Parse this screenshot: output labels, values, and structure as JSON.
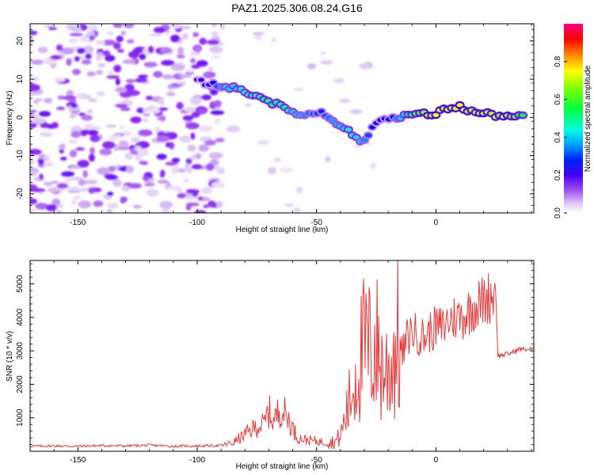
{
  "title": "PAZ1.2025.306.08.24.G16",
  "chart_data": [
    {
      "type": "heatmap",
      "xlabel": "Height of straight line (km)",
      "ylabel": "Frequency (Hz)",
      "xlim": [
        -170,
        41
      ],
      "ylim": [
        -25,
        24.5
      ],
      "xticks": [
        -150,
        -100,
        -50,
        0
      ],
      "yticks": [
        -20,
        -10,
        0,
        10,
        20
      ],
      "xtick_labels": [
        "-150",
        "-100",
        "-50",
        "0"
      ],
      "ytick_labels": [
        "-20",
        "-10",
        "0",
        "10",
        "20"
      ],
      "colorbar": {
        "label": "Normalized spectral amplitude",
        "range": [
          0,
          1
        ],
        "ticks": [
          0.0,
          0.2,
          0.4,
          0.6,
          0.8
        ],
        "tick_labels": [
          "0.0",
          "0.2",
          "0.4",
          "0.6",
          "0.8"
        ],
        "colors": [
          "#ffffff",
          "#d9c2f2",
          "#8f2cf0",
          "#4b00ff",
          "#0000ff",
          "#00b4ff",
          "#00ffd0",
          "#00ff40",
          "#7dff00",
          "#ffff00",
          "#ff9000",
          "#ff0000",
          "#ff0080"
        ]
      },
      "ridge": [
        {
          "x": -100,
          "y": 9.5,
          "a": 0.25
        },
        {
          "x": -95,
          "y": 8.8,
          "a": 0.3
        },
        {
          "x": -88,
          "y": 8.2,
          "a": 0.45
        },
        {
          "x": -80,
          "y": 6.8,
          "a": 0.5
        },
        {
          "x": -72,
          "y": 5.0,
          "a": 0.55
        },
        {
          "x": -65,
          "y": 2.8,
          "a": 0.55
        },
        {
          "x": -60,
          "y": 1.5,
          "a": 0.45
        },
        {
          "x": -55,
          "y": 0.5,
          "a": 0.4
        },
        {
          "x": -48,
          "y": 1.5,
          "a": 0.35
        },
        {
          "x": -40,
          "y": -2.0,
          "a": 0.45
        },
        {
          "x": -35,
          "y": -4.5,
          "a": 0.5
        },
        {
          "x": -30,
          "y": -6.5,
          "a": 0.4
        },
        {
          "x": -25,
          "y": -1.0,
          "a": 0.3
        },
        {
          "x": -18,
          "y": 0.0,
          "a": 0.35
        },
        {
          "x": -10,
          "y": 0.8,
          "a": 0.6
        },
        {
          "x": 0,
          "y": 0.8,
          "a": 0.75
        },
        {
          "x": 5,
          "y": 2.5,
          "a": 0.7
        },
        {
          "x": 10,
          "y": 2.8,
          "a": 0.75
        },
        {
          "x": 15,
          "y": 1.5,
          "a": 0.7
        },
        {
          "x": 20,
          "y": 1.0,
          "a": 0.7
        },
        {
          "x": 30,
          "y": 0.2,
          "a": 0.7
        },
        {
          "x": 38,
          "y": 0.0,
          "a": 0.55
        }
      ]
    },
    {
      "type": "line",
      "xlabel": "Height of straight line (km)",
      "ylabel": "SNR (10 * v/v)",
      "xlim": [
        -170,
        41
      ],
      "ylim": [
        0,
        5700
      ],
      "xticks": [
        -150,
        -100,
        -50,
        0
      ],
      "yticks": [
        1000,
        2000,
        3000,
        4000,
        5000
      ],
      "xtick_labels": [
        "-150",
        "-100",
        "-50",
        "0"
      ],
      "ytick_labels": [
        "1000",
        "2000",
        "3000",
        "4000",
        "5000"
      ],
      "color": "#e8393a",
      "series": [
        {
          "name": "SNR",
          "x": [
            -170,
            -160,
            -150,
            -140,
            -130,
            -120,
            -110,
            -100,
            -90,
            -85,
            -80,
            -75,
            -72,
            -70,
            -68,
            -65,
            -62,
            -60,
            -58,
            -55,
            -50,
            -45,
            -42,
            -40,
            -38,
            -35,
            -33,
            -30,
            -28,
            -25,
            -23,
            -20,
            -18,
            -16,
            -14,
            -12,
            -10,
            -8,
            -5,
            -2,
            0,
            3,
            5,
            8,
            10,
            13,
            15,
            18,
            20,
            22,
            24,
            25,
            26,
            30,
            35,
            41
          ],
          "y": [
            150,
            160,
            150,
            170,
            160,
            180,
            150,
            160,
            170,
            250,
            500,
            750,
            800,
            1200,
            900,
            1300,
            1000,
            700,
            400,
            350,
            300,
            250,
            300,
            450,
            1000,
            1800,
            2500,
            3100,
            3000,
            3200,
            2500,
            2400,
            2800,
            3300,
            2900,
            3400,
            3600,
            3500,
            3400,
            3600,
            3700,
            3700,
            3900,
            4000,
            4000,
            4100,
            4300,
            4400,
            4500,
            4600,
            4700,
            4800,
            2850,
            2900,
            3050,
            3050
          ]
        }
      ]
    }
  ]
}
